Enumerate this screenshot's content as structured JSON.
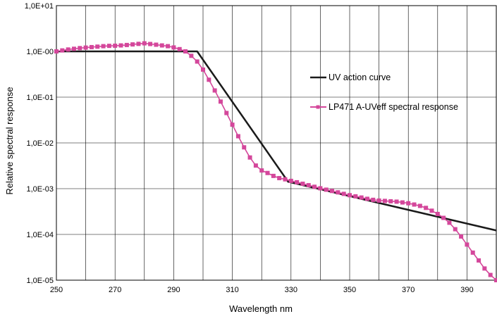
{
  "chart_data": {
    "type": "line",
    "title": "",
    "xlabel": "Wavelength nm",
    "ylabel": "Relative spectral response",
    "xlim": [
      250,
      400
    ],
    "ylim": [
      1e-05,
      10
    ],
    "yscale": "log",
    "grid": true,
    "legend_position": "right-middle",
    "x_ticks": [
      250,
      270,
      290,
      310,
      330,
      350,
      370,
      390
    ],
    "x_tick_labels": [
      "250",
      "270",
      "290",
      "310",
      "330",
      "350",
      "370",
      "390"
    ],
    "y_ticks": [
      10,
      1,
      0.1,
      0.01,
      0.001,
      0.0001,
      1e-05
    ],
    "y_tick_labels": [
      "1,0E+01",
      "1,0E-00",
      "1,0E-01",
      "1,0E-02",
      "1,0E-03",
      "1,0E-04",
      "1,0E-05"
    ],
    "series": [
      {
        "name": "UV action curve",
        "color": "#1a1a1a",
        "marker": "none",
        "x": [
          250,
          298,
          329,
          400
        ],
        "y": [
          1.0,
          1.0,
          0.00142,
          0.000122
        ]
      },
      {
        "name": "LP471 A-UVeff spectral response",
        "color": "#d4479b",
        "marker": "square",
        "x": [
          250,
          252,
          254,
          256,
          258,
          260,
          262,
          264,
          266,
          268,
          270,
          272,
          274,
          276,
          278,
          280,
          282,
          284,
          286,
          288,
          290,
          292,
          294,
          296,
          298,
          300,
          302,
          304,
          306,
          308,
          310,
          312,
          314,
          316,
          318,
          320,
          322,
          324,
          326,
          328,
          330,
          332,
          334,
          336,
          338,
          340,
          342,
          344,
          346,
          348,
          350,
          352,
          354,
          356,
          358,
          360,
          362,
          364,
          366,
          368,
          370,
          372,
          374,
          376,
          378,
          380,
          382,
          384,
          386,
          388,
          390,
          392,
          394,
          396,
          398,
          400
        ],
        "y": [
          1.0,
          1.05,
          1.1,
          1.14,
          1.18,
          1.21,
          1.24,
          1.27,
          1.3,
          1.32,
          1.33,
          1.35,
          1.38,
          1.42,
          1.46,
          1.5,
          1.45,
          1.4,
          1.35,
          1.3,
          1.22,
          1.12,
          1.0,
          0.8,
          0.6,
          0.4,
          0.24,
          0.14,
          0.08,
          0.045,
          0.025,
          0.014,
          0.008,
          0.0048,
          0.0032,
          0.0025,
          0.0022,
          0.0019,
          0.0017,
          0.0016,
          0.00148,
          0.00138,
          0.00128,
          0.00119,
          0.0011,
          0.00102,
          0.00095,
          0.00089,
          0.00083,
          0.00077,
          0.00072,
          0.00068,
          0.00064,
          0.0006,
          0.00057,
          0.00055,
          0.00054,
          0.00053,
          0.00052,
          0.0005,
          0.00048,
          0.00045,
          0.00042,
          0.00038,
          0.00033,
          0.00028,
          0.00023,
          0.00018,
          0.00013,
          9e-05,
          6e-05,
          4e-05,
          2.7e-05,
          1.8e-05,
          1.3e-05,
          1e-05
        ]
      }
    ]
  }
}
